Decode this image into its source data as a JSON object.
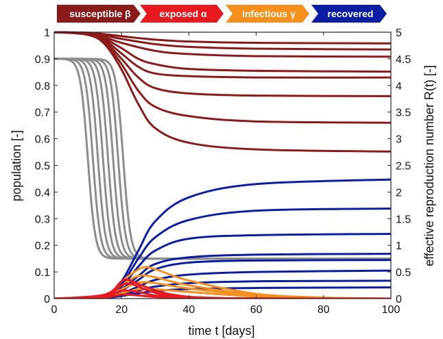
{
  "legend": [
    {
      "label": "susceptible",
      "symbol": "β",
      "color": "#8b1a1a"
    },
    {
      "label": "exposed",
      "symbol": "α",
      "color": "#e8191e"
    },
    {
      "label": "infectious",
      "symbol": "γ",
      "color": "#f5901e"
    },
    {
      "label": "recovered",
      "symbol": "",
      "color": "#0b1da3"
    }
  ],
  "chart_data": {
    "type": "line",
    "xlabel": "time t [days]",
    "ylabel_left": "population [-]",
    "ylabel_right": "effective reproduction number R(t) [-]",
    "xlim": [
      0,
      100
    ],
    "ylim_left": [
      0,
      1
    ],
    "ylim_right": [
      0,
      5
    ],
    "x_ticks": [
      "0",
      "20",
      "40",
      "60",
      "80",
      "100"
    ],
    "y_ticks_left": [
      "0",
      "0.1",
      "0.2",
      "0.3",
      "0.4",
      "0.5",
      "0.6",
      "0.7",
      "0.8",
      "0.9",
      "1"
    ],
    "y_ticks_right": [
      "0",
      "0.5",
      "1",
      "1.5",
      "2",
      "2.5",
      "3",
      "3.5",
      "4",
      "4.5",
      "5"
    ],
    "grid": false,
    "colors": {
      "susceptible": "#8b1a1a",
      "exposed": "#e8191e",
      "infectious": "#f5901e",
      "recovered": "#0b1da3",
      "reproduction": "#8c8c8c"
    },
    "series": [
      {
        "group": "susceptible",
        "points": [
          [
            0,
            1
          ],
          [
            10,
            0.998
          ],
          [
            14,
            0.994
          ],
          [
            20,
            0.985
          ],
          [
            30,
            0.972
          ],
          [
            40,
            0.965
          ],
          [
            60,
            0.96
          ],
          [
            100,
            0.958
          ]
        ]
      },
      {
        "group": "susceptible",
        "points": [
          [
            0,
            1
          ],
          [
            10,
            0.997
          ],
          [
            14,
            0.99
          ],
          [
            20,
            0.975
          ],
          [
            30,
            0.955
          ],
          [
            40,
            0.945
          ],
          [
            60,
            0.938
          ],
          [
            100,
            0.935
          ]
        ]
      },
      {
        "group": "susceptible",
        "points": [
          [
            0,
            1
          ],
          [
            10,
            0.996
          ],
          [
            14,
            0.985
          ],
          [
            20,
            0.96
          ],
          [
            30,
            0.93
          ],
          [
            40,
            0.918
          ],
          [
            60,
            0.91
          ],
          [
            100,
            0.908
          ]
        ]
      },
      {
        "group": "susceptible",
        "points": [
          [
            0,
            1
          ],
          [
            10,
            0.995
          ],
          [
            15,
            0.975
          ],
          [
            20,
            0.94
          ],
          [
            25,
            0.9
          ],
          [
            30,
            0.88
          ],
          [
            40,
            0.862
          ],
          [
            60,
            0.855
          ],
          [
            100,
            0.852
          ]
        ]
      },
      {
        "group": "susceptible",
        "points": [
          [
            0,
            1
          ],
          [
            10,
            0.994
          ],
          [
            15,
            0.97
          ],
          [
            20,
            0.92
          ],
          [
            25,
            0.87
          ],
          [
            30,
            0.845
          ],
          [
            40,
            0.835
          ],
          [
            60,
            0.83
          ],
          [
            100,
            0.83
          ]
        ]
      },
      {
        "group": "susceptible",
        "points": [
          [
            0,
            1
          ],
          [
            10,
            0.993
          ],
          [
            15,
            0.965
          ],
          [
            20,
            0.9
          ],
          [
            25,
            0.83
          ],
          [
            30,
            0.79
          ],
          [
            40,
            0.77
          ],
          [
            60,
            0.762
          ],
          [
            100,
            0.76
          ]
        ]
      },
      {
        "group": "susceptible",
        "points": [
          [
            0,
            1
          ],
          [
            10,
            0.992
          ],
          [
            15,
            0.96
          ],
          [
            20,
            0.88
          ],
          [
            25,
            0.78
          ],
          [
            30,
            0.72
          ],
          [
            40,
            0.685
          ],
          [
            60,
            0.665
          ],
          [
            100,
            0.66
          ]
        ]
      },
      {
        "group": "susceptible",
        "points": [
          [
            0,
            1
          ],
          [
            10,
            0.99
          ],
          [
            15,
            0.955
          ],
          [
            20,
            0.86
          ],
          [
            25,
            0.73
          ],
          [
            30,
            0.64
          ],
          [
            40,
            0.585
          ],
          [
            60,
            0.56
          ],
          [
            100,
            0.552
          ]
        ]
      },
      {
        "group": "recovered",
        "points": [
          [
            0,
            0
          ],
          [
            14,
            0.002
          ],
          [
            20,
            0.01
          ],
          [
            25,
            0.02
          ],
          [
            30,
            0.028
          ],
          [
            40,
            0.036
          ],
          [
            60,
            0.04
          ],
          [
            100,
            0.042
          ]
        ]
      },
      {
        "group": "recovered",
        "points": [
          [
            0,
            0
          ],
          [
            14,
            0.003
          ],
          [
            20,
            0.015
          ],
          [
            25,
            0.03
          ],
          [
            30,
            0.045
          ],
          [
            40,
            0.058
          ],
          [
            60,
            0.065
          ],
          [
            100,
            0.067
          ]
        ]
      },
      {
        "group": "recovered",
        "points": [
          [
            0,
            0
          ],
          [
            14,
            0.004
          ],
          [
            20,
            0.02
          ],
          [
            25,
            0.045
          ],
          [
            30,
            0.07
          ],
          [
            40,
            0.09
          ],
          [
            60,
            0.1
          ],
          [
            100,
            0.105
          ]
        ]
      },
      {
        "group": "recovered",
        "points": [
          [
            0,
            0
          ],
          [
            15,
            0.006
          ],
          [
            20,
            0.03
          ],
          [
            25,
            0.07
          ],
          [
            30,
            0.11
          ],
          [
            40,
            0.135
          ],
          [
            60,
            0.143
          ],
          [
            100,
            0.145
          ]
        ]
      },
      {
        "group": "recovered",
        "points": [
          [
            0,
            0
          ],
          [
            15,
            0.007
          ],
          [
            20,
            0.035
          ],
          [
            25,
            0.085
          ],
          [
            30,
            0.13
          ],
          [
            40,
            0.155
          ],
          [
            60,
            0.165
          ],
          [
            100,
            0.168
          ]
        ]
      },
      {
        "group": "recovered",
        "points": [
          [
            0,
            0
          ],
          [
            15,
            0.008
          ],
          [
            20,
            0.045
          ],
          [
            25,
            0.12
          ],
          [
            30,
            0.18
          ],
          [
            40,
            0.225
          ],
          [
            60,
            0.238
          ],
          [
            100,
            0.243
          ]
        ]
      },
      {
        "group": "recovered",
        "points": [
          [
            0,
            0
          ],
          [
            15,
            0.01
          ],
          [
            20,
            0.055
          ],
          [
            25,
            0.15
          ],
          [
            30,
            0.23
          ],
          [
            40,
            0.295
          ],
          [
            60,
            0.33
          ],
          [
            100,
            0.338
          ]
        ]
      },
      {
        "group": "recovered",
        "points": [
          [
            0,
            0
          ],
          [
            15,
            0.012
          ],
          [
            20,
            0.065
          ],
          [
            25,
            0.18
          ],
          [
            30,
            0.29
          ],
          [
            40,
            0.38
          ],
          [
            60,
            0.43
          ],
          [
            100,
            0.447
          ]
        ]
      },
      {
        "group": "infectious",
        "points": [
          [
            0,
            0
          ],
          [
            15,
            0.005
          ],
          [
            20,
            0.02
          ],
          [
            25,
            0.035
          ],
          [
            30,
            0.035
          ],
          [
            40,
            0.025
          ],
          [
            60,
            0.008
          ],
          [
            80,
            0.002
          ],
          [
            100,
            0
          ]
        ]
      },
      {
        "group": "infectious",
        "points": [
          [
            0,
            0
          ],
          [
            15,
            0.008
          ],
          [
            20,
            0.035
          ],
          [
            25,
            0.06
          ],
          [
            30,
            0.058
          ],
          [
            40,
            0.038
          ],
          [
            60,
            0.012
          ],
          [
            80,
            0.003
          ],
          [
            100,
            0
          ]
        ]
      },
      {
        "group": "infectious",
        "points": [
          [
            0,
            0
          ],
          [
            15,
            0.01
          ],
          [
            20,
            0.05
          ],
          [
            25,
            0.085
          ],
          [
            30,
            0.08
          ],
          [
            40,
            0.05
          ],
          [
            60,
            0.014
          ],
          [
            80,
            0.003
          ],
          [
            100,
            0
          ]
        ]
      },
      {
        "group": "infectious",
        "points": [
          [
            0,
            0
          ],
          [
            15,
            0.012
          ],
          [
            20,
            0.065
          ],
          [
            26,
            0.115
          ],
          [
            30,
            0.11
          ],
          [
            40,
            0.068
          ],
          [
            60,
            0.018
          ],
          [
            80,
            0.004
          ],
          [
            100,
            0
          ]
        ]
      },
      {
        "group": "exposed",
        "points": [
          [
            0,
            0
          ],
          [
            15,
            0.005
          ],
          [
            20,
            0.015
          ],
          [
            25,
            0.012
          ],
          [
            30,
            0.006
          ],
          [
            40,
            0.002
          ],
          [
            60,
            0
          ],
          [
            100,
            0
          ]
        ]
      },
      {
        "group": "exposed",
        "points": [
          [
            0,
            0
          ],
          [
            15,
            0.008
          ],
          [
            20,
            0.03
          ],
          [
            25,
            0.025
          ],
          [
            30,
            0.012
          ],
          [
            40,
            0.003
          ],
          [
            60,
            0
          ],
          [
            100,
            0
          ]
        ]
      },
      {
        "group": "exposed",
        "points": [
          [
            0,
            0
          ],
          [
            15,
            0.012
          ],
          [
            20,
            0.05
          ],
          [
            23,
            0.055
          ],
          [
            28,
            0.03
          ],
          [
            35,
            0.01
          ],
          [
            50,
            0.001
          ],
          [
            100,
            0
          ]
        ]
      },
      {
        "group": "exposed",
        "points": [
          [
            0,
            0
          ],
          [
            15,
            0.015
          ],
          [
            20,
            0.065
          ],
          [
            22,
            0.07
          ],
          [
            27,
            0.045
          ],
          [
            35,
            0.015
          ],
          [
            50,
            0.002
          ],
          [
            100,
            0
          ]
        ]
      },
      {
        "group": "reproduction",
        "axis": "right",
        "center": 10
      },
      {
        "group": "reproduction",
        "axis": "right",
        "center": 11.5
      },
      {
        "group": "reproduction",
        "axis": "right",
        "center": 13
      },
      {
        "group": "reproduction",
        "axis": "right",
        "center": 14.5
      },
      {
        "group": "reproduction",
        "axis": "right",
        "center": 16
      },
      {
        "group": "reproduction",
        "axis": "right",
        "center": 17.5
      },
      {
        "group": "reproduction",
        "axis": "right",
        "center": 19
      },
      {
        "group": "reproduction",
        "axis": "right",
        "center": 20.5
      }
    ],
    "reproduction_levels": {
      "start": 4.5,
      "end": 0.75
    }
  }
}
